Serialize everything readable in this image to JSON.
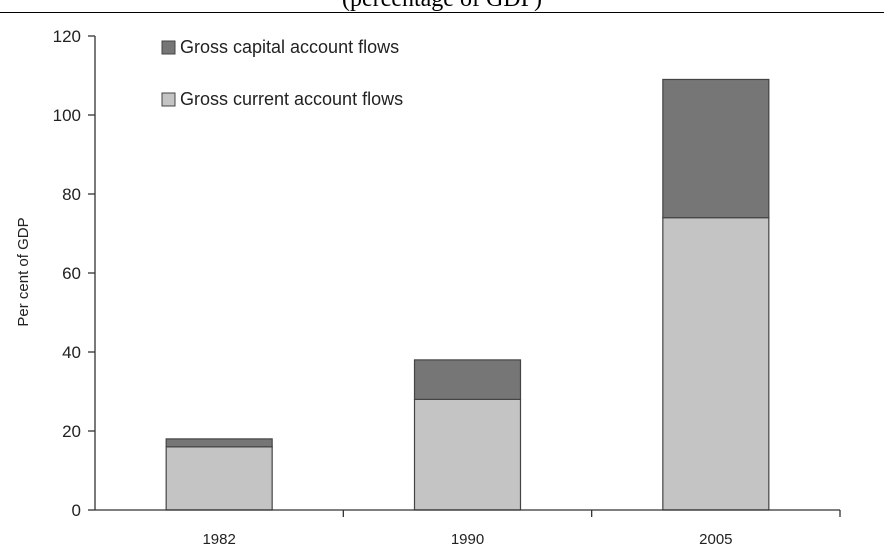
{
  "caption": "(percentage of GDP)",
  "chart_data": {
    "type": "bar",
    "stacked": true,
    "categories": [
      "1982",
      "1990",
      "2005"
    ],
    "series": [
      {
        "name": "Gross current account flows",
        "values": [
          16,
          28,
          74
        ],
        "color": "#c4c4c4"
      },
      {
        "name": "Gross capital account flows",
        "values": [
          2,
          10,
          35
        ],
        "color": "#767676"
      }
    ],
    "title": "",
    "xlabel": "",
    "ylabel": "Per cent of GDP",
    "ylim": [
      0,
      120
    ],
    "yticks": [
      "0",
      "20",
      "40",
      "60",
      "80",
      "100",
      "120"
    ],
    "legend": {
      "position": "top-left",
      "entries": [
        "Gross capital account flows",
        "Gross current account flows"
      ]
    },
    "grid": false
  }
}
